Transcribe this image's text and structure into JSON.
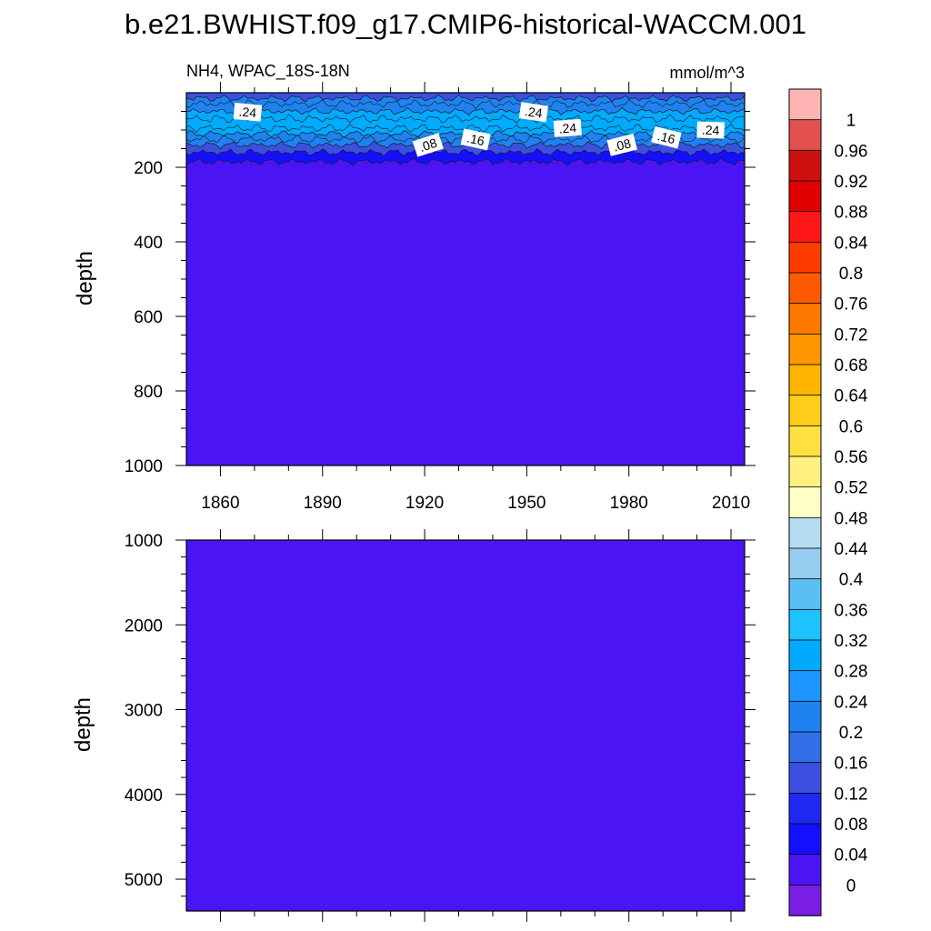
{
  "title": "b.e21.BWHIST.f09_g17.CMIP6-historical-WACCM.001",
  "chart_data": {
    "type": "heatmap",
    "variable_label": "NH4, WPAC_18S-18N",
    "units_label": "mmol/m^3",
    "x_ticks": [
      "1860",
      "1890",
      "1920",
      "1950",
      "1980",
      "2010"
    ],
    "panels": [
      {
        "ylabel": "depth",
        "y_ticks": [
          "200",
          "400",
          "600",
          "800",
          "1000"
        ],
        "ylim": [
          0,
          1000
        ],
        "dominant_value": 0,
        "near_surface": {
          "depth_range": [
            0,
            200
          ],
          "typical_max": 0.28,
          "layers": [
            {
              "depth_top": 0,
              "depth_bottom": 15,
              "value": 0.15
            },
            {
              "depth_top": 15,
              "depth_bottom": 50,
              "value": 0.22
            },
            {
              "depth_top": 50,
              "depth_bottom": 110,
              "value": 0.28
            },
            {
              "depth_top": 110,
              "depth_bottom": 140,
              "value": 0.2
            },
            {
              "depth_top": 140,
              "depth_bottom": 160,
              "value": 0.13
            },
            {
              "depth_top": 160,
              "depth_bottom": 185,
              "value": 0.06
            },
            {
              "depth_top": 185,
              "depth_bottom": 1000,
              "value": 0.02
            }
          ]
        },
        "contour_labels": [
          {
            "text": ".24",
            "year": 1868,
            "depth": 52
          },
          {
            "text": ".24",
            "year": 1952,
            "depth": 52
          },
          {
            "text": ".24",
            "year": 1962,
            "depth": 95
          },
          {
            "text": ".24",
            "year": 2004,
            "depth": 100
          },
          {
            "text": ".08",
            "year": 1921,
            "depth": 140
          },
          {
            "text": ".16",
            "year": 1935,
            "depth": 125
          },
          {
            "text": ".08",
            "year": 1978,
            "depth": 140
          },
          {
            "text": ".16",
            "year": 1991,
            "depth": 120
          }
        ]
      },
      {
        "ylabel": "depth",
        "y_ticks": [
          "1000",
          "2000",
          "3000",
          "4000",
          "5000"
        ],
        "ylim": [
          1000,
          5375
        ],
        "dominant_value": 0
      }
    ],
    "colorbar": {
      "labels": [
        "1",
        "0.96",
        "0.92",
        "0.88",
        "0.84",
        "0.8",
        "0.76",
        "0.72",
        "0.68",
        "0.64",
        "0.6",
        "0.56",
        "0.52",
        "0.48",
        "0.44",
        "0.4",
        "0.36",
        "0.32",
        "0.28",
        "0.24",
        "0.2",
        "0.16",
        "0.12",
        "0.08",
        "0.04",
        "0"
      ],
      "colors": [
        "#ffb4b4",
        "#e25050",
        "#cc1010",
        "#e00000",
        "#ff1818",
        "#ff3c00",
        "#ff5a00",
        "#ff7800",
        "#ff9600",
        "#ffb400",
        "#ffcc1a",
        "#ffe040",
        "#fff080",
        "#ffffc8",
        "#b4dcf0",
        "#96ccee",
        "#5ac0f4",
        "#1ec2ff",
        "#00aaff",
        "#1e96ff",
        "#1e82f0",
        "#326ee6",
        "#3c50e0",
        "#1e28f0",
        "#1410ff",
        "#4a14f5",
        "#7a1ee6"
      ]
    }
  }
}
